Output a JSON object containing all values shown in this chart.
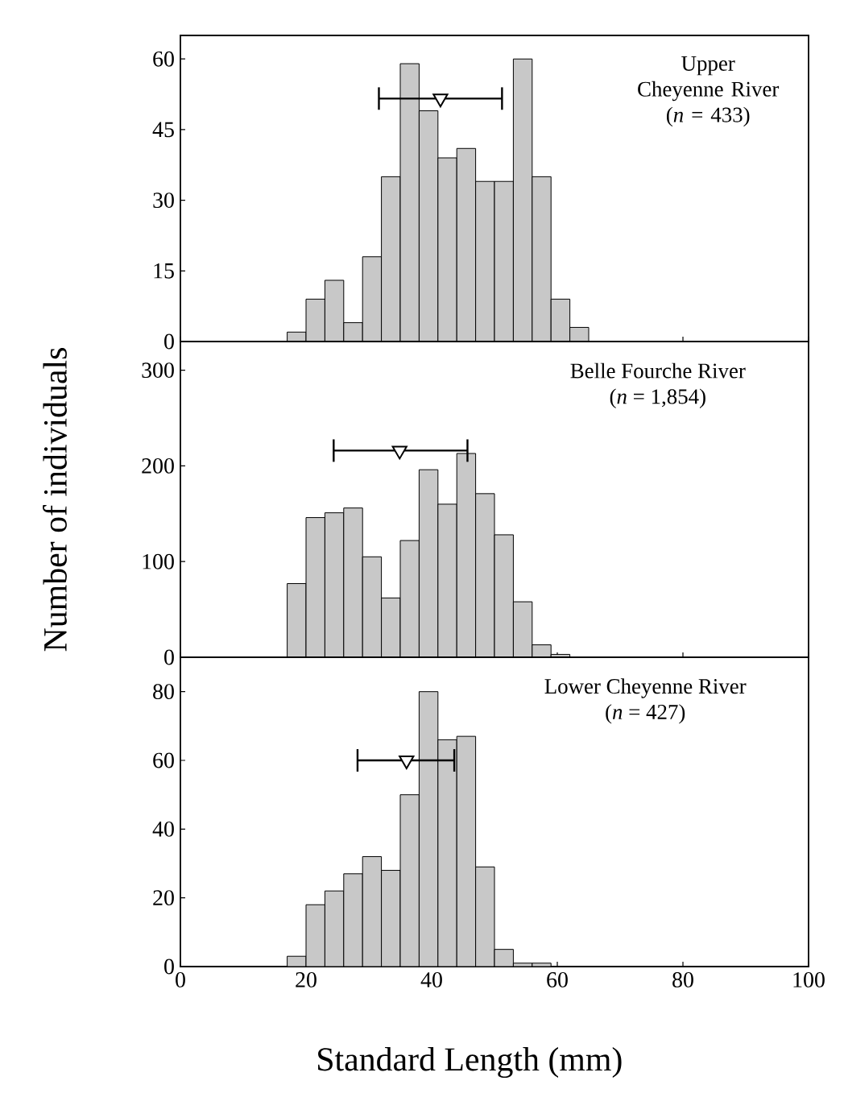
{
  "chart_data": [
    {
      "type": "histogram",
      "xlim": [
        0,
        100
      ],
      "xticks": [
        0,
        20,
        40,
        60,
        80,
        100
      ],
      "ylim": [
        0,
        65
      ],
      "yticks": [
        0,
        15,
        30,
        45,
        60
      ],
      "tick_labels": "y",
      "grid": false,
      "marker": "triangle",
      "annotations": [
        "Upper Cheyenne River",
        "(*n* = 433)"
      ],
      "series": [
        {
          "color": "#c8c8c8",
          "bins": [
            17,
            20,
            23,
            26,
            29,
            32,
            35,
            38,
            41,
            44,
            47,
            50,
            53,
            56,
            59,
            62,
            65
          ],
          "values": [
            2,
            9,
            13,
            4,
            18,
            35,
            59,
            49,
            39,
            41,
            34,
            34,
            60,
            35,
            9,
            3
          ]
        },
        {
          "type": "scatter",
          "color": "#000000",
          "x": [
            41.4
          ],
          "values": [
            51.6
          ],
          "xerrors": [
            [
              31.6,
              51.2
            ]
          ]
        }
      ]
    },
    {
      "type": "histogram",
      "xlim": [
        0,
        100
      ],
      "xticks": [
        0,
        20,
        40,
        60,
        80,
        100
      ],
      "ylim": [
        0,
        330
      ],
      "yticks": [
        0,
        100,
        200,
        300
      ],
      "tick_labels": "y",
      "grid": false,
      "marker": "triangle",
      "ylabel": "Number of individuals",
      "annotations": [
        "Belle Fourche River",
        "(*n* = 1,854)"
      ],
      "series": [
        {
          "color": "#c8c8c8",
          "bins": [
            17,
            20,
            23,
            26,
            29,
            32,
            35,
            38,
            41,
            44,
            47,
            50,
            53,
            56,
            59,
            62
          ],
          "values": [
            77,
            146,
            151,
            156,
            105,
            62,
            122,
            196,
            160,
            213,
            171,
            128,
            58,
            13,
            3
          ]
        },
        {
          "type": "scatter",
          "color": "#000000",
          "x": [
            34.9
          ],
          "values": [
            216
          ],
          "xerrors": [
            [
              24.4,
              45.7
            ]
          ]
        }
      ]
    },
    {
      "type": "histogram",
      "xlim": [
        0,
        100
      ],
      "xticks": [
        0,
        20,
        40,
        60,
        80,
        100
      ],
      "ylim": [
        0,
        90
      ],
      "yticks": [
        0,
        20,
        40,
        60,
        80
      ],
      "grid": false,
      "marker": "triangle",
      "xlabel": "Standard Length (mm)",
      "annotations": [
        "Lower Cheyenne River",
        "(*n* = 427)"
      ],
      "series": [
        {
          "color": "#c8c8c8",
          "bins": [
            17,
            20,
            23,
            26,
            29,
            32,
            35,
            38,
            41,
            44,
            47,
            50,
            53,
            56,
            59
          ],
          "values": [
            3,
            18,
            22,
            27,
            32,
            28,
            50,
            80,
            66,
            67,
            29,
            5,
            1,
            1
          ]
        },
        {
          "type": "scatter",
          "color": "#000000",
          "x": [
            36.0
          ],
          "values": [
            60
          ],
          "xerrors": [
            [
              28.2,
              43.6
            ]
          ]
        }
      ]
    }
  ]
}
